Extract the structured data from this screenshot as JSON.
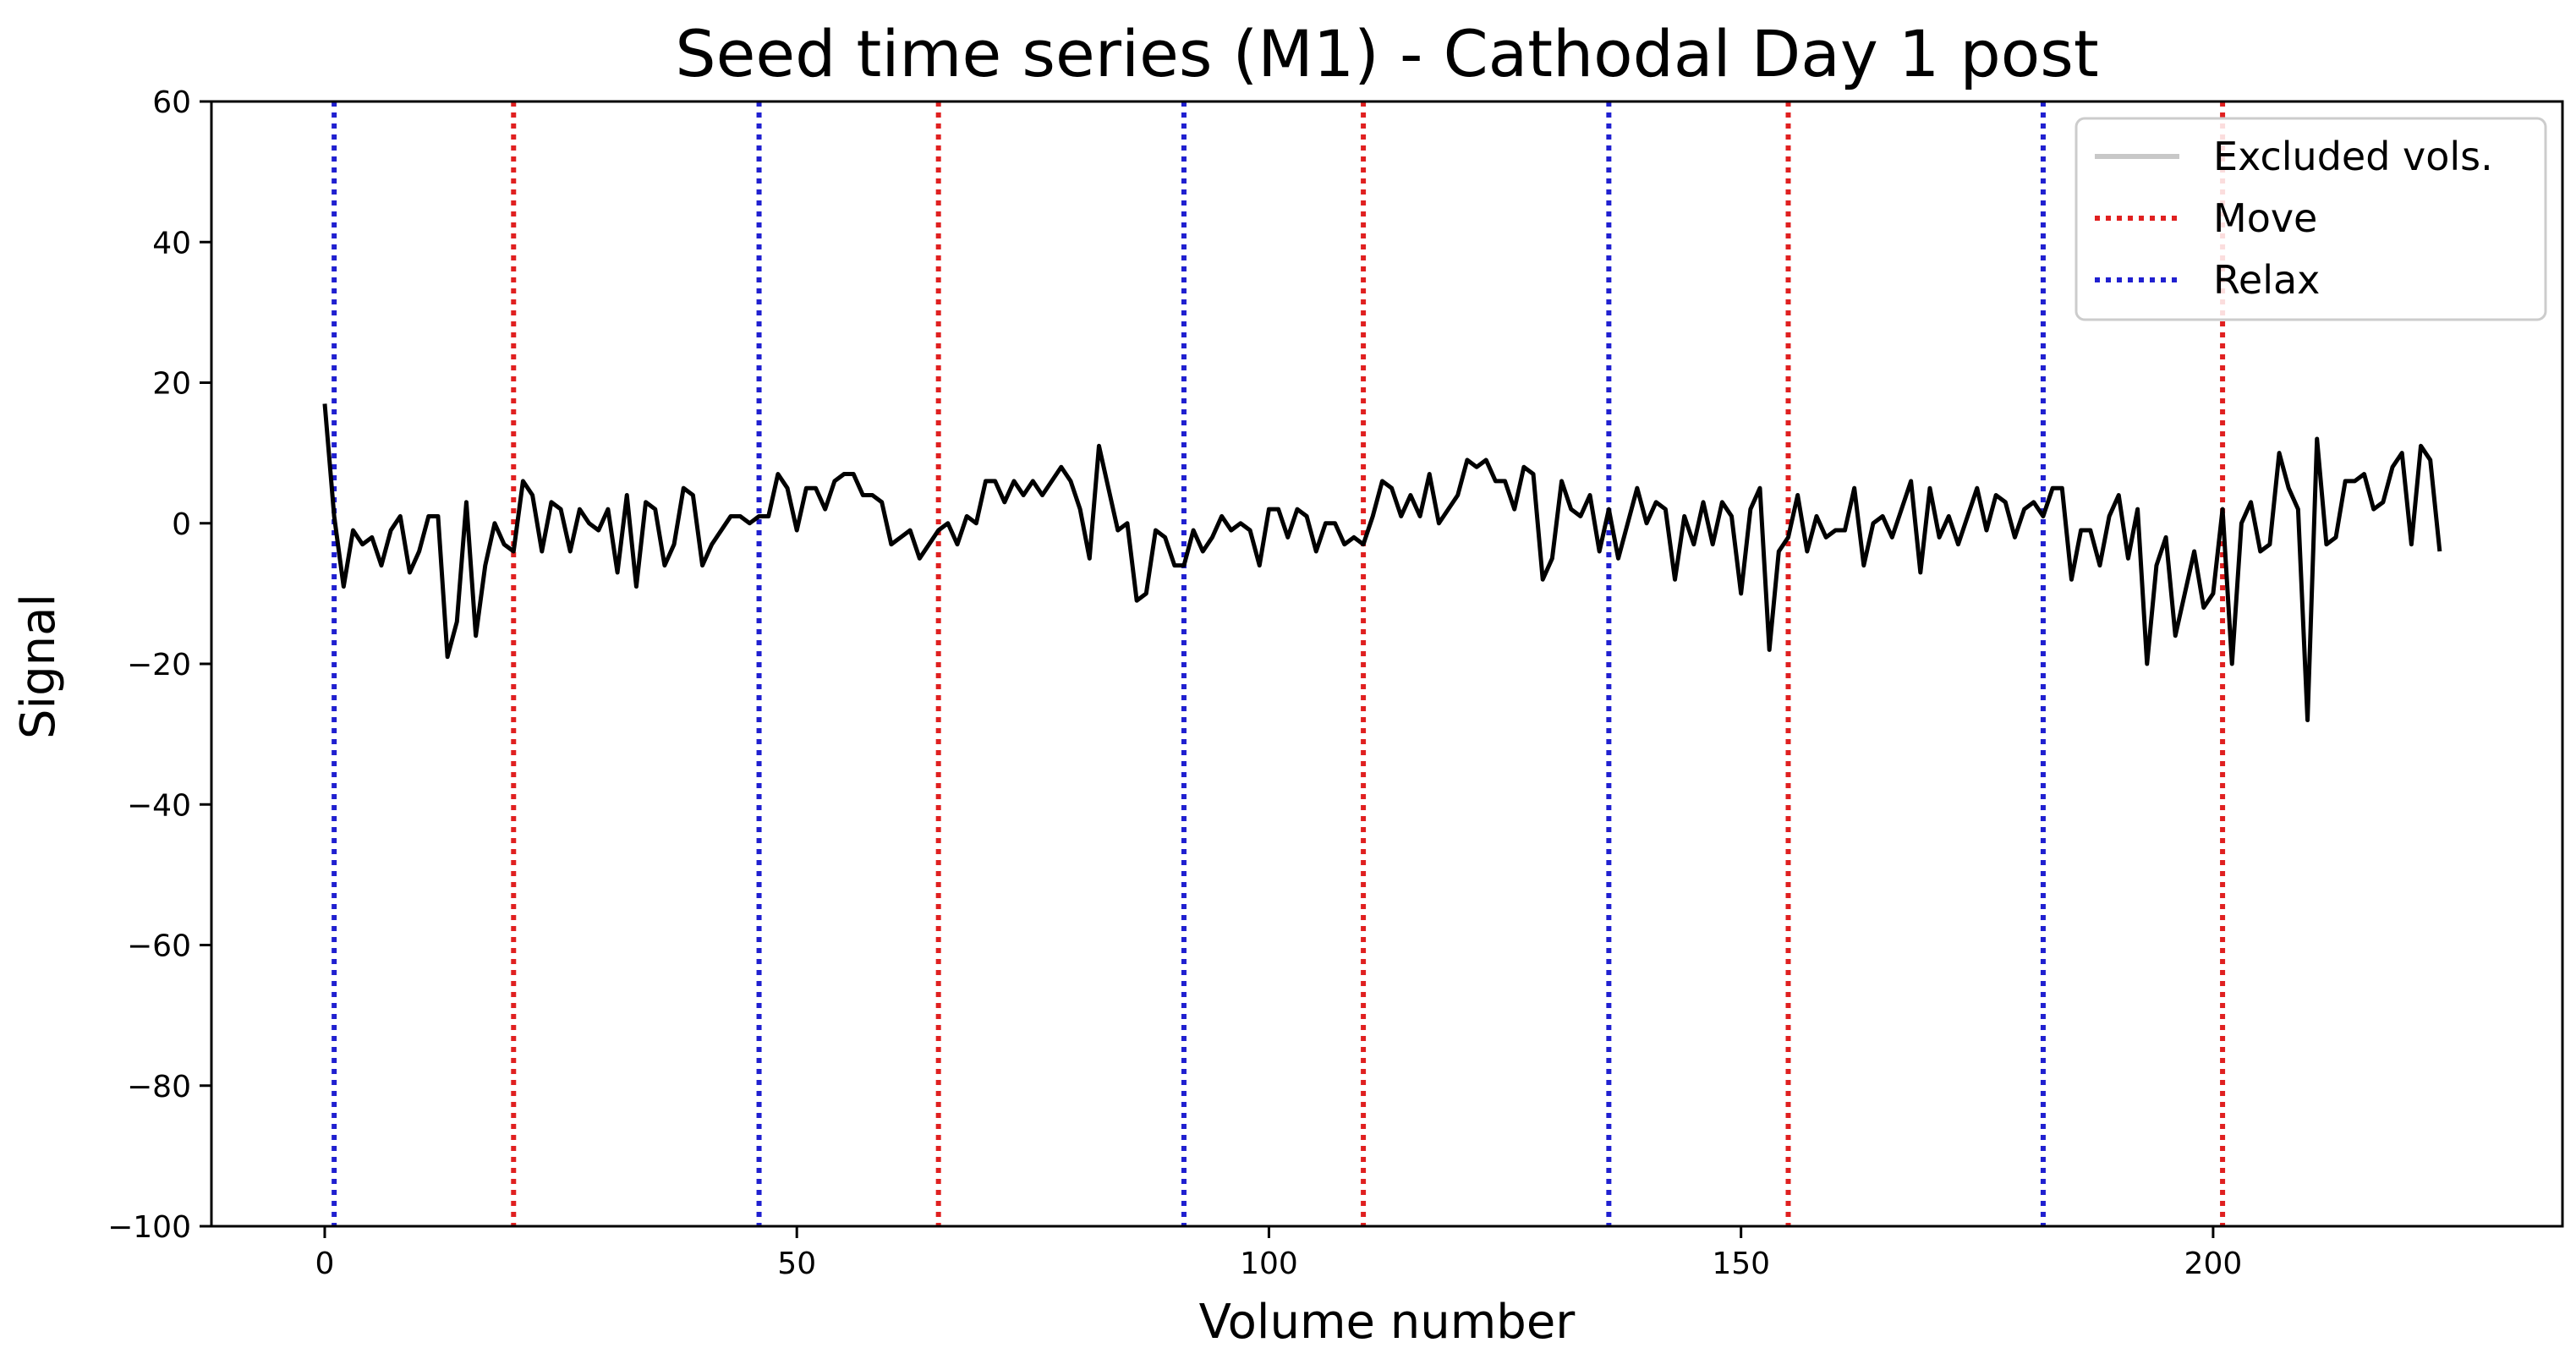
{
  "chart_data": {
    "type": "line",
    "title": "Seed time series (M1) - Cathodal Day 1 post",
    "xlabel": "Volume number",
    "ylabel": "Signal",
    "xlim": [
      -12,
      237
    ],
    "ylim": [
      -100,
      60
    ],
    "xticks": [
      0,
      50,
      100,
      150,
      200
    ],
    "yticks": [
      60,
      40,
      20,
      0,
      -20,
      -40,
      -60,
      -80,
      -100
    ],
    "tick_labels": {
      "x": [
        "0",
        "50",
        "100",
        "150",
        "200"
      ],
      "y": [
        "60",
        "40",
        "20",
        "0",
        "−20",
        "−40",
        "−60",
        "−80",
        "−100"
      ]
    },
    "grid": false,
    "legend": {
      "placement": "top-right",
      "entries": [
        {
          "label": "Excluded vols.",
          "color": "#c8c8c8",
          "style": "solid"
        },
        {
          "label": "Move",
          "color": "#e02020",
          "style": "dotted"
        },
        {
          "label": "Relax",
          "color": "#2020d0",
          "style": "dotted"
        }
      ]
    },
    "series": [
      {
        "color": "#000000",
        "values": [
          17,
          1,
          -9,
          -1,
          -3,
          -2,
          -6,
          -1,
          1,
          -7,
          -4,
          1,
          1,
          -19,
          -14,
          3,
          -16,
          -6,
          0,
          -3,
          -4,
          6,
          4,
          -4,
          3,
          2,
          -4,
          2,
          0,
          -1,
          2,
          -7,
          4,
          -9,
          3,
          2,
          -6,
          -3,
          5,
          4,
          -6,
          -3,
          -1,
          1,
          1,
          0,
          1,
          1,
          7,
          5,
          -1,
          5,
          5,
          2,
          6,
          7,
          7,
          4,
          4,
          3,
          -3,
          -2,
          -1,
          -5,
          -3,
          -1,
          0,
          -3,
          1,
          0,
          6,
          6,
          3,
          6,
          4,
          6,
          4,
          6,
          8,
          6,
          2,
          -5,
          11,
          5,
          -1,
          0,
          -11,
          -10,
          -1,
          -2,
          -6,
          -6,
          -1,
          -4,
          -2,
          1,
          -1,
          0,
          -1,
          -6,
          2,
          2,
          -2,
          2,
          1,
          -4,
          0,
          0,
          -3,
          -2,
          -3,
          1,
          6,
          5,
          1,
          4,
          1,
          7,
          0,
          2,
          4,
          9,
          8,
          9,
          6,
          6,
          2,
          8,
          7,
          -8,
          -5,
          6,
          2,
          1,
          4,
          -4,
          2,
          -5,
          0,
          5,
          0,
          3,
          2,
          -8,
          1,
          -3,
          3,
          -3,
          3,
          1,
          -10,
          2,
          5,
          -18,
          -4,
          -2,
          4,
          -4,
          1,
          -2,
          -1,
          -1,
          5,
          -6,
          0,
          1,
          -2,
          2,
          6,
          -7,
          5,
          -2,
          1,
          -3,
          1,
          5,
          -1,
          4,
          3,
          -2,
          2,
          3,
          1,
          5,
          5,
          -8,
          -1,
          -1,
          -6,
          1,
          4,
          -5,
          2,
          -20,
          -6,
          -2,
          -16,
          -10,
          -4,
          -12,
          -10,
          2,
          -20,
          0,
          3,
          -4,
          -3,
          10,
          5,
          2,
          -28,
          12,
          -3,
          -2,
          6,
          6,
          7,
          2,
          3,
          8,
          10,
          -3,
          11,
          9,
          -4
        ]
      }
    ],
    "vertical_markers": {
      "move": [
        20,
        65,
        110,
        155,
        201
      ],
      "relax": [
        1,
        46,
        91,
        136,
        182
      ]
    }
  }
}
